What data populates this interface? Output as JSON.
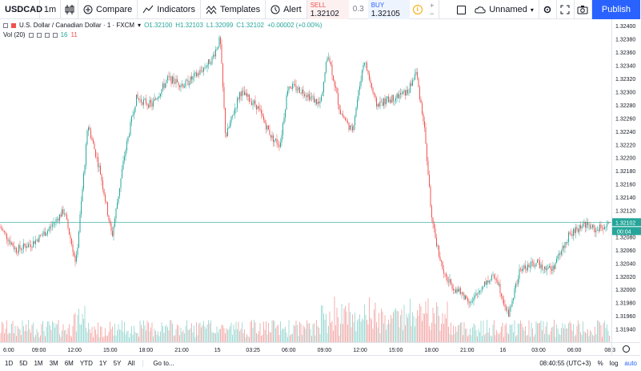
{
  "toolbar": {
    "symbol": "USDCAD",
    "interval": "1m",
    "compare_label": "Compare",
    "indicators_label": "Indicators",
    "templates_label": "Templates",
    "alert_label": "Alert",
    "sell_label": "SELL",
    "sell_price": "1.32102",
    "spread": "0.3",
    "buy_label": "BUY",
    "buy_price": "1.32105",
    "layout_name": "Unnamed",
    "publish_label": "Publish"
  },
  "legend": {
    "title": "U.S. Dollar / Canadian Dollar · 1 · FXCM",
    "open": "O1.32100",
    "high": "H1.32103",
    "low": "L1.32099",
    "close": "C1.32102",
    "change": "+0.00002 (+0.00%)",
    "volume_label": "Vol (20)",
    "volume_value_a": "16",
    "volume_value_b": "11"
  },
  "price_axis": {
    "ticks": [
      "1.32400",
      "1.32380",
      "1.32360",
      "1.32340",
      "1.32320",
      "1.32300",
      "1.32280",
      "1.32260",
      "1.32240",
      "1.32220",
      "1.32200",
      "1.32180",
      "1.32160",
      "1.32140",
      "1.32120",
      "1.32100",
      "1.32080",
      "1.32060",
      "1.32040",
      "1.32020",
      "1.32000",
      "1.31980",
      "1.31960",
      "1.31940"
    ],
    "current_price": "1.32102",
    "countdown": "00:04"
  },
  "time_axis": {
    "ticks": [
      "6:00",
      "09:00",
      "12:00",
      "15:00",
      "18:00",
      "21:00",
      "15",
      "03:25",
      "06:00",
      "09:00",
      "12:00",
      "15:00",
      "18:00",
      "21:00",
      "16",
      "03:00",
      "06:00",
      "08:3"
    ]
  },
  "bottombar": {
    "ranges": [
      "1D",
      "5D",
      "1M",
      "3M",
      "6M",
      "YTD",
      "1Y",
      "5Y",
      "All"
    ],
    "goto_label": "Go to...",
    "clock": "08:40:55 (UTC+3)",
    "percent_label": "%",
    "log_label": "log",
    "auto_label": "auto"
  },
  "colors": {
    "up": "#26a69a",
    "down": "#ef5350",
    "accent": "#2962ff",
    "current_price_line": "#26a69a",
    "vol_up": "#a6dcd7",
    "vol_down": "#f6b1b0"
  },
  "icons": [
    "compare-icon",
    "indicators-icon",
    "templates-icon",
    "alert-icon",
    "info-icon",
    "fullscreen-box-icon",
    "cloud-icon",
    "settings-icon",
    "fullscreen-icon",
    "camera-icon",
    "gear-icon"
  ]
}
